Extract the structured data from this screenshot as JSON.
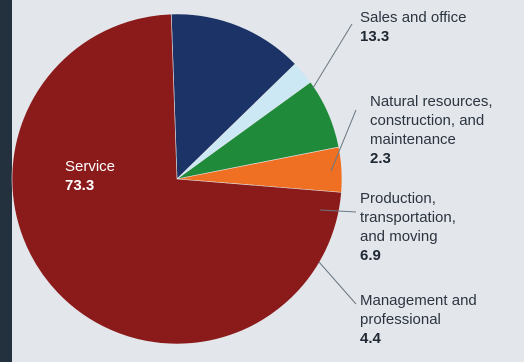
{
  "chart_data": {
    "type": "pie",
    "title": "",
    "slices": [
      {
        "name": "Service",
        "label_lines": [
          "Service"
        ],
        "value": 73.3,
        "value_label": "73.3",
        "color": "#8b1a1a"
      },
      {
        "name": "Sales and office",
        "label_lines": [
          "Sales and office"
        ],
        "value": 13.3,
        "value_label": "13.3",
        "color": "#1b3366"
      },
      {
        "name": "Natural resources, construction, and maintenance",
        "label_lines": [
          "Natural resources,",
          "construction, and",
          "maintenance"
        ],
        "value": 2.3,
        "value_label": "2.3",
        "color": "#cde8f5"
      },
      {
        "name": "Production, transportation, and moving",
        "label_lines": [
          "Production,",
          "transportation,",
          "and moving"
        ],
        "value": 6.9,
        "value_label": "6.9",
        "color": "#1f8a3a"
      },
      {
        "name": "Management and professional",
        "label_lines": [
          "Management and",
          "professional"
        ],
        "value": 4.4,
        "value_label": "4.4",
        "color": "#f07023"
      }
    ]
  }
}
